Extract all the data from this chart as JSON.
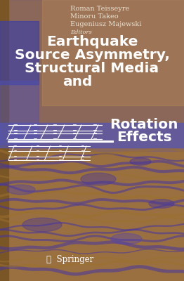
{
  "authors": [
    "Roman Teisseyre",
    "Minoru Takeo",
    "Eugeniusz Majewski"
  ],
  "editors_label": "Editors",
  "title_line1": "Earthquake",
  "title_line2": "Source Asymmetry,",
  "title_line3": "Structural Media",
  "title_line4": "and",
  "title_line5": "Rotation",
  "title_line6": "Effects",
  "publisher": "Springer",
  "bg_overall": "#a07040",
  "bg_purple_overlay": "#5040a0",
  "text_white": "#ffffff",
  "text_cream": "#e8e0d0",
  "title_fontsize": 14.5,
  "author_fontsize": 7.0,
  "publisher_fontsize": 8.5,
  "figsize": [
    2.62,
    4.0
  ],
  "dpi": 100
}
